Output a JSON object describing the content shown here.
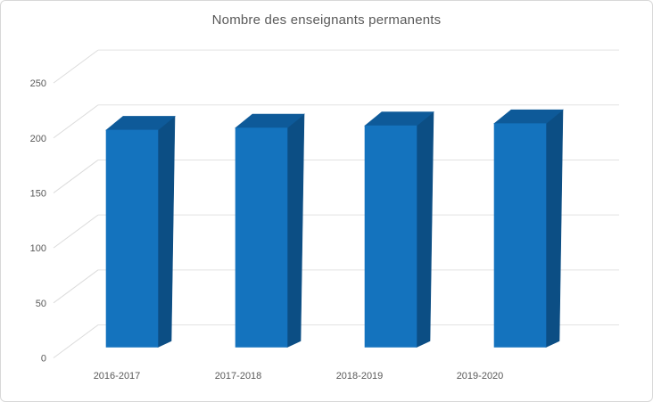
{
  "chart": {
    "title": "Nombre des enseignants permanents"
  },
  "colors": {
    "bar_front": "#1473BE",
    "bar_top": "#0E5A99",
    "bar_side": "#0C4E84",
    "gridline": "#E2E2E2",
    "tick_line": "#DCDCDC",
    "text": "#595959",
    "frame_border": "#D8D8D8",
    "background": "#FFFFFF"
  },
  "chart_data": {
    "type": "bar",
    "subtype": "3d-column",
    "title": "Nombre des enseignants permanents",
    "categories": [
      "2016-2017",
      "2017-2018",
      "2018-2019",
      "2019-2020"
    ],
    "series": [
      {
        "name": "Nombre des enseignants permanents",
        "values": [
          200,
          202,
          204,
          206
        ]
      }
    ],
    "values": [
      200,
      202,
      204,
      206
    ],
    "xlabel": "",
    "ylabel": "",
    "ylim": [
      0,
      250
    ],
    "yticks": [
      0,
      50,
      100,
      150,
      200,
      250
    ],
    "ytick_step": 50,
    "grid": true,
    "legend": false,
    "wall_fill": "none"
  }
}
